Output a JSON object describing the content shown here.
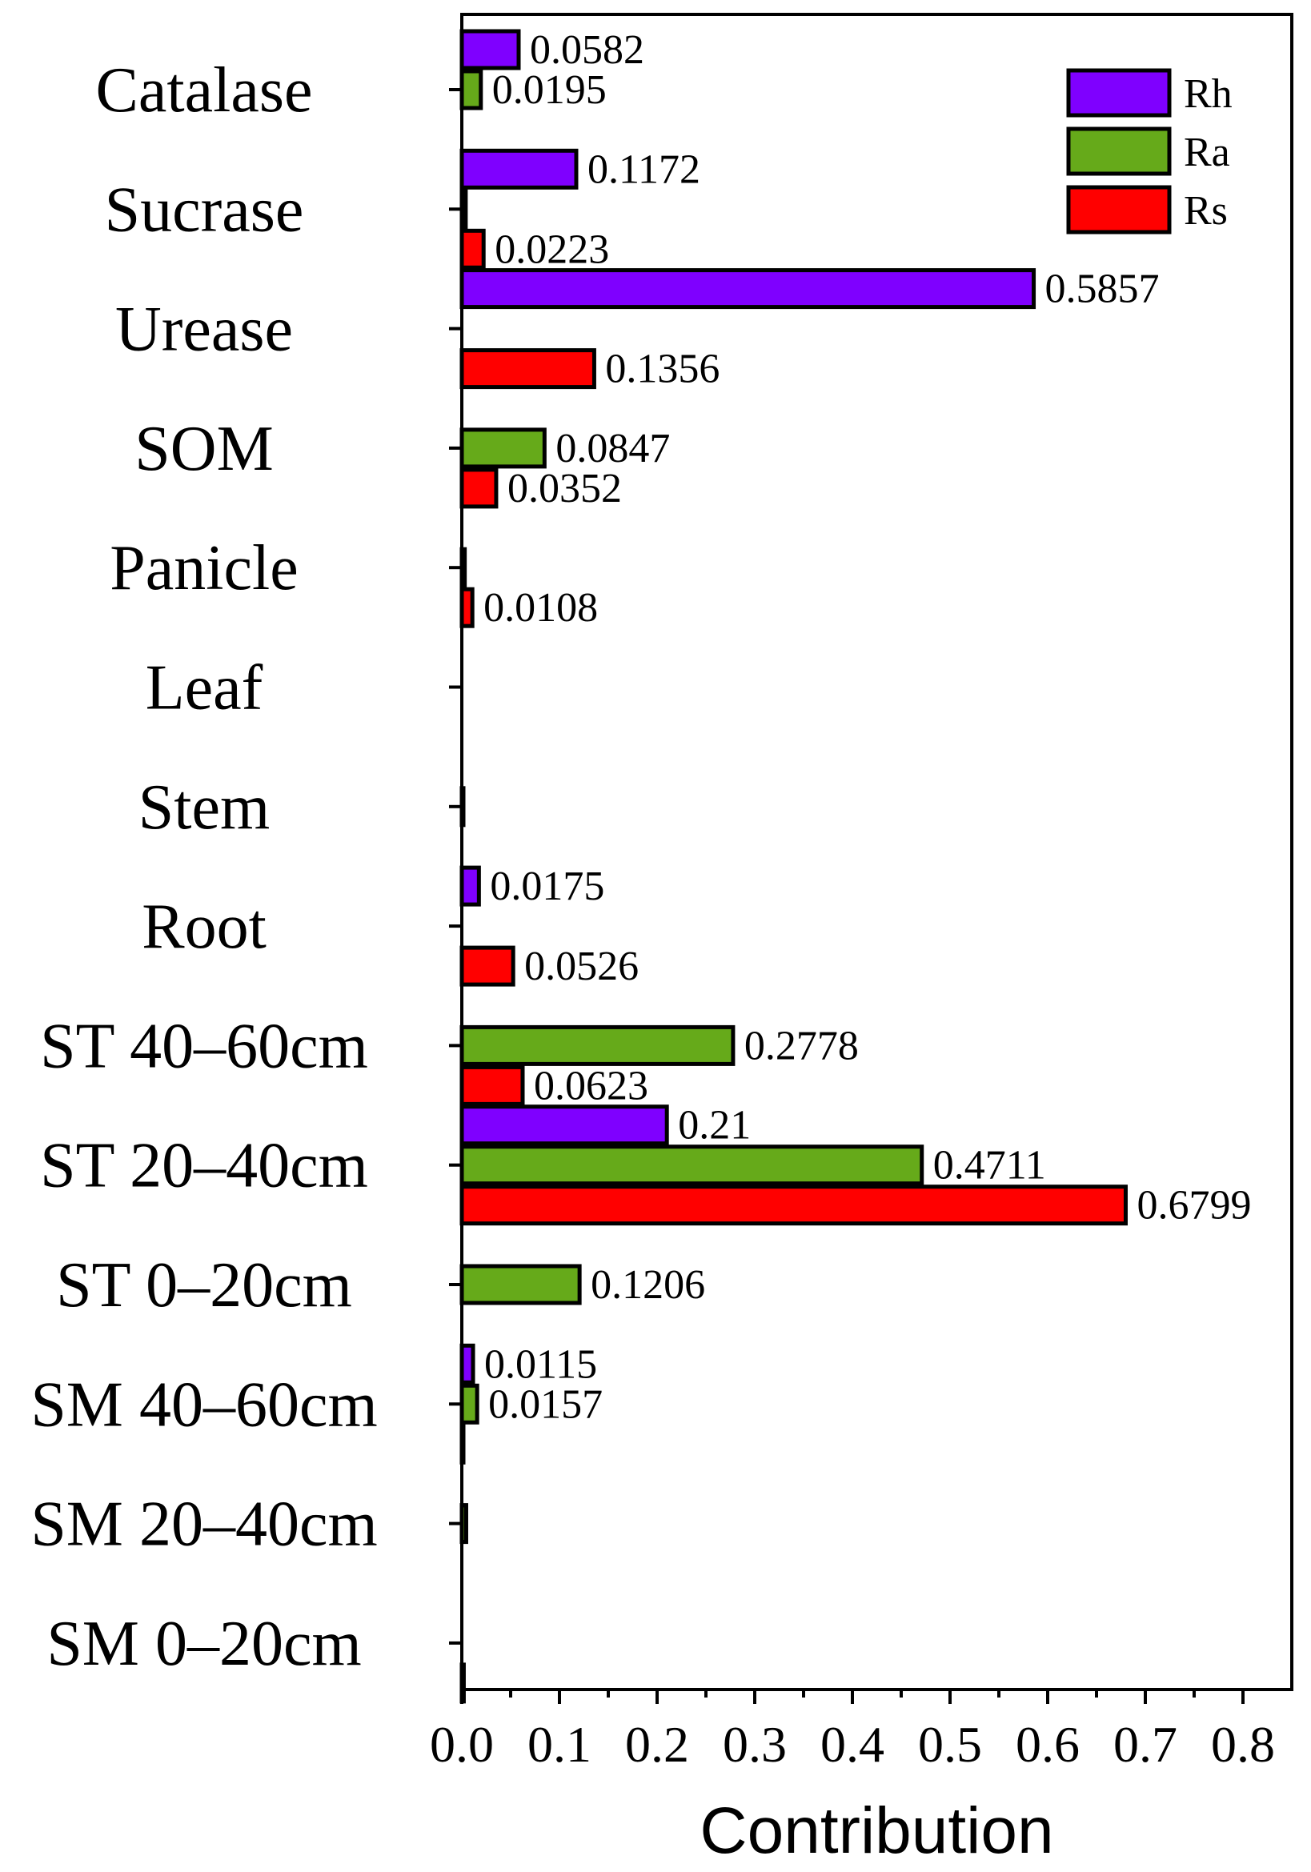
{
  "chart_data": {
    "type": "bar",
    "orientation": "horizontal",
    "xlabel": "Contribution",
    "ylabel": "",
    "xlim": [
      0,
      0.85
    ],
    "xticks": [
      "0.0",
      "0.1",
      "0.2",
      "0.3",
      "0.4",
      "0.5",
      "0.6",
      "0.7",
      "0.8"
    ],
    "grid": false,
    "legend_position": "top-right",
    "categories": [
      "Catalase",
      "Sucrase",
      "Urease",
      "SOM",
      "Panicle",
      "Leaf",
      "Stem",
      "Root",
      "ST 40–60cm",
      "ST 20–40cm",
      "ST 0–20cm",
      "SM 40–60cm",
      "SM 20–40cm",
      "SM 0–20cm"
    ],
    "series": [
      {
        "name": "Rh",
        "color": "#7f00ff",
        "values": [
          0.0582,
          0.1172,
          0.5857,
          0,
          0,
          0,
          0,
          0.0175,
          0,
          0.21,
          0,
          0.0115,
          0,
          0
        ],
        "labels": [
          "0.0582",
          "0.1172",
          "0.5857",
          "",
          "",
          "",
          "",
          "0.0175",
          "",
          "0.21",
          "",
          "0.0115",
          "",
          ""
        ]
      },
      {
        "name": "Ra",
        "color": "#66aa1a",
        "values": [
          0.0195,
          0.004,
          0,
          0.0847,
          0.003,
          0,
          0.0015,
          0,
          0.2778,
          0.4711,
          0.1206,
          0.0157,
          0.0045,
          0
        ],
        "labels": [
          "0.0195",
          "",
          "",
          "0.0847",
          "",
          "",
          "",
          "",
          "0.2778",
          "0.4711",
          "0.1206",
          "0.0157",
          "",
          ""
        ]
      },
      {
        "name": "Rs",
        "color": "#ff0000",
        "values": [
          0,
          0.0223,
          0.1356,
          0.0352,
          0.0108,
          0,
          0,
          0.0526,
          0.0623,
          0.6799,
          0,
          0.001,
          0,
          0.002
        ],
        "labels": [
          "",
          "0.0223",
          "0.1356",
          "0.0352",
          "0.0108",
          "",
          "",
          "0.0526",
          "0.0623",
          "0.6799",
          "",
          "",
          "",
          ""
        ]
      }
    ]
  }
}
